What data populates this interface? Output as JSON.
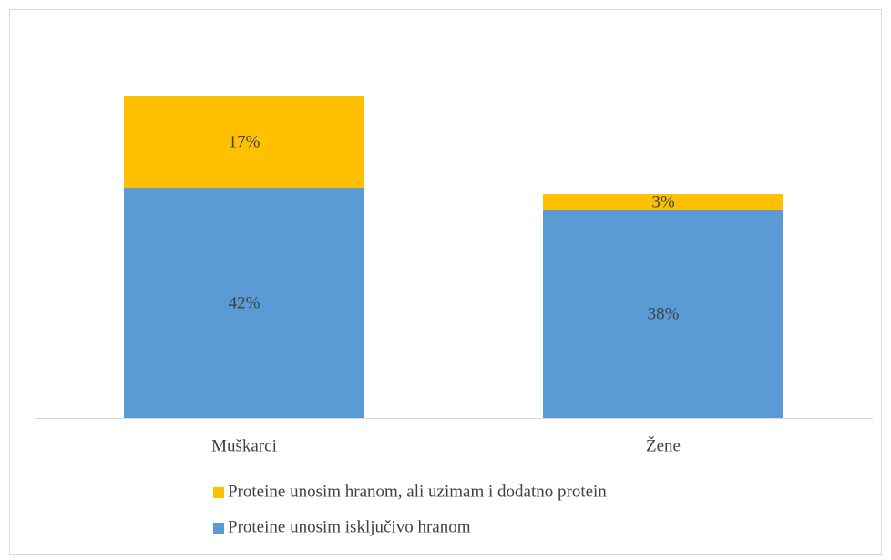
{
  "chart_data": {
    "type": "stacked-bar",
    "categories": [
      "Muškarci",
      "Žene"
    ],
    "series": [
      {
        "name": "Proteine unosim isključivo hranom",
        "color": "#5b9bd5",
        "values": [
          42,
          38
        ],
        "value_labels": [
          "42%",
          "38%"
        ]
      },
      {
        "name": "Proteine unosim hranom, ali uzimam i dodatno protein",
        "color": "#ffc000",
        "values": [
          17,
          3
        ],
        "value_labels": [
          "17%",
          "3%"
        ]
      }
    ],
    "legend": "bottom"
  }
}
